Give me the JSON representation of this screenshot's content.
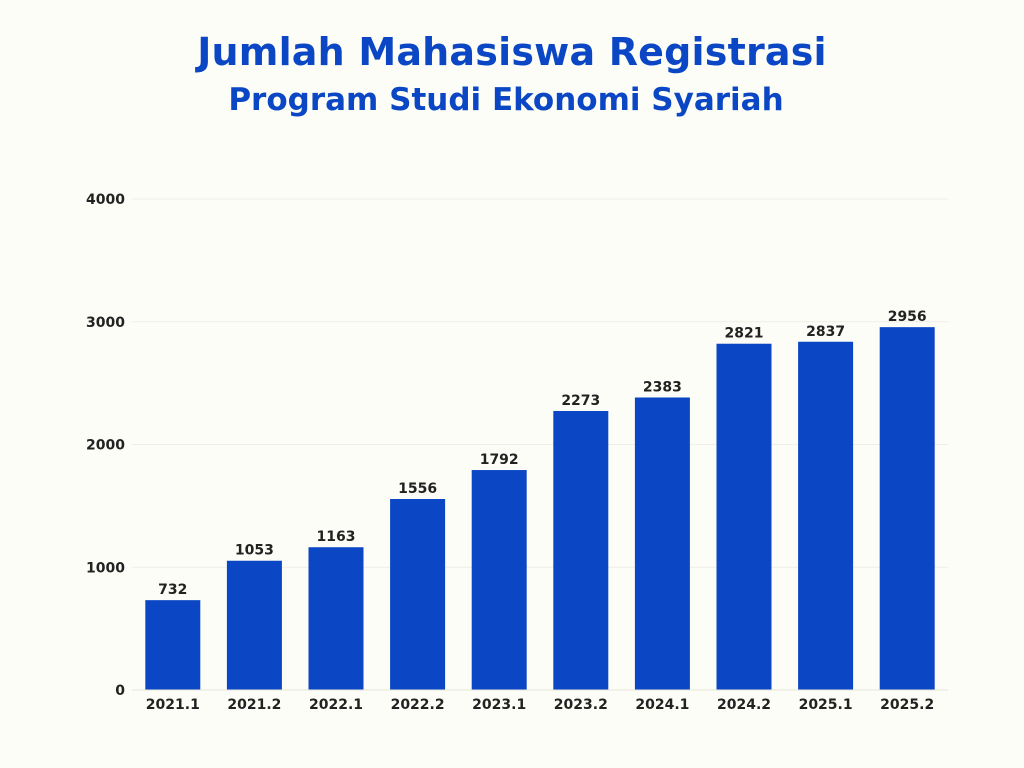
{
  "chart_data": {
    "type": "bar",
    "title": "Jumlah Mahasiswa Registrasi",
    "subtitle": "Program Studi Ekonomi Syariah",
    "xlabel": "",
    "ylabel": "",
    "categories": [
      "2021.1",
      "2021.2",
      "2022.1",
      "2022.2",
      "2023.1",
      "2023.2",
      "2024.1",
      "2024.2",
      "2025.1",
      "2025.2"
    ],
    "values": [
      732,
      1053,
      1163,
      1556,
      1792,
      2273,
      2383,
      2821,
      2837,
      2956
    ],
    "y_ticks": [
      0,
      1000,
      2000,
      3000,
      4000
    ],
    "ylim": [
      0,
      4000
    ],
    "grid": true,
    "data_labels": true,
    "legend": "none",
    "bar_color": "#0b47c4"
  }
}
